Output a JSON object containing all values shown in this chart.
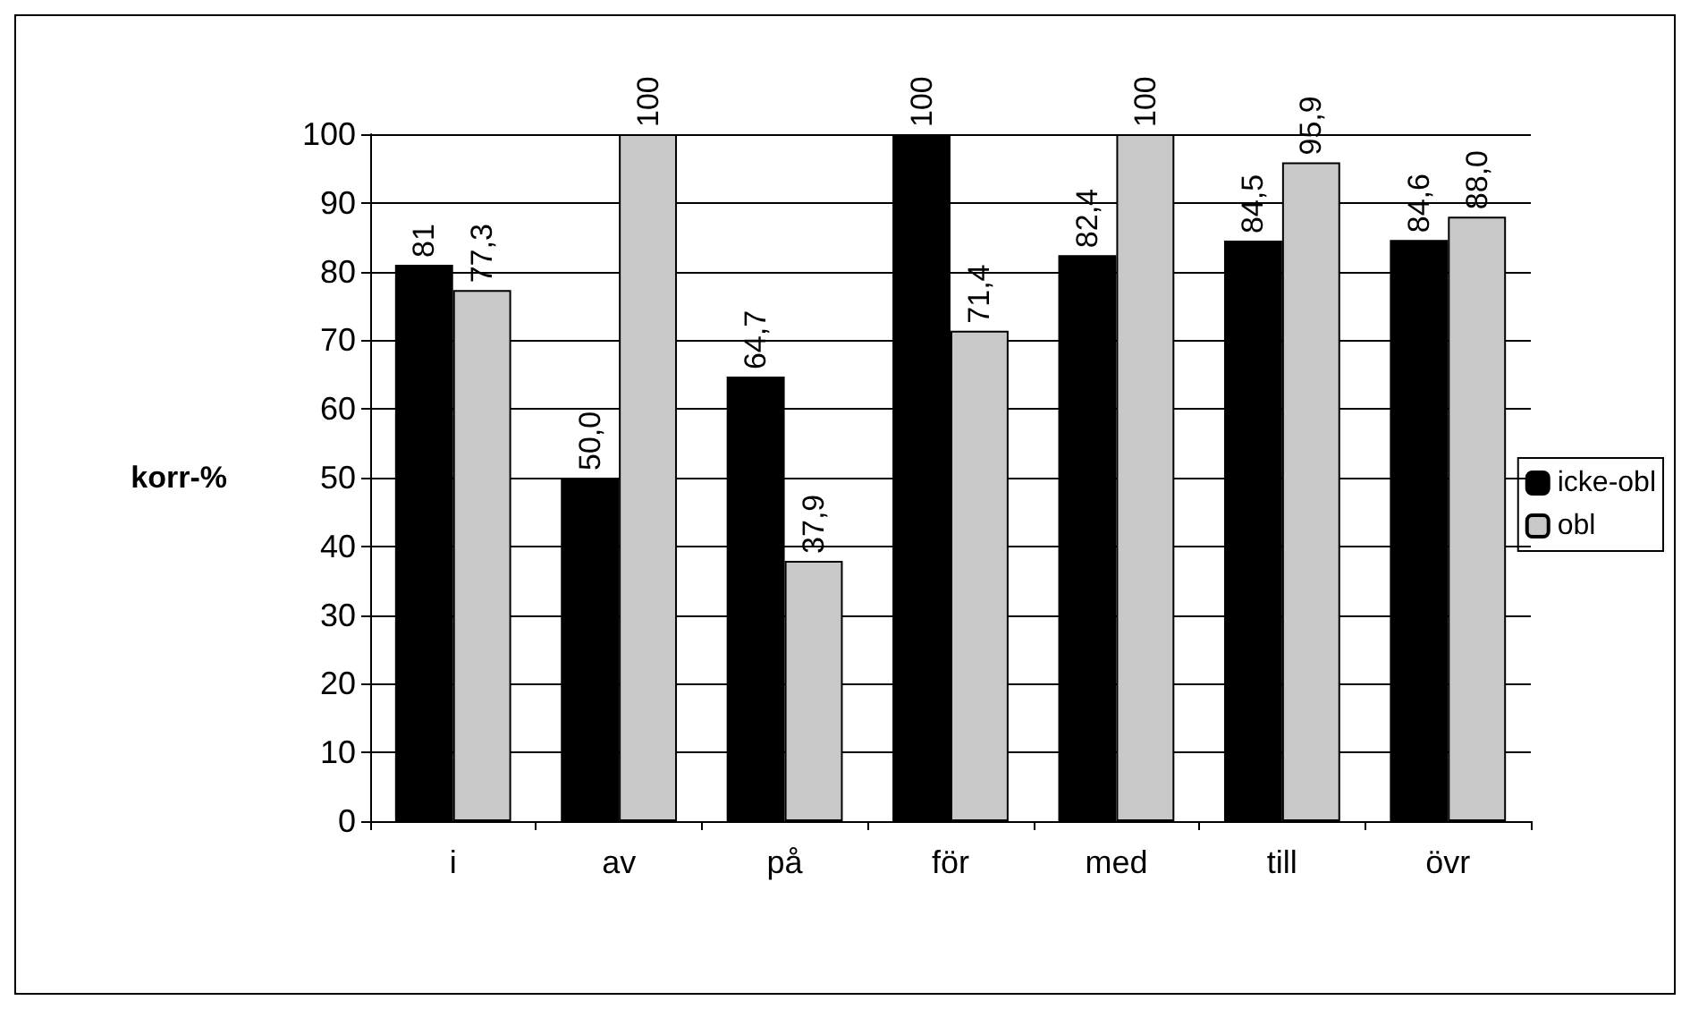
{
  "chart_data": {
    "type": "bar",
    "ylabel": "korr-%",
    "categories": [
      "i",
      "av",
      "på",
      "för",
      "med",
      "till",
      "övr"
    ],
    "series": [
      {
        "name": "icke-obl",
        "color": "#000000",
        "values": [
          81,
          50.0,
          64.7,
          100,
          82.4,
          84.5,
          84.6
        ],
        "value_labels": [
          "81",
          "50,0",
          "64,7",
          "100",
          "82,4",
          "84,5",
          "84,6"
        ]
      },
      {
        "name": "obl",
        "color": "#c8c8c8",
        "values": [
          77.3,
          100,
          37.9,
          71.4,
          100,
          95.9,
          88.0
        ],
        "value_labels": [
          "77,3",
          "100",
          "37,9",
          "71,4",
          "100",
          "95,9",
          "88,0"
        ]
      }
    ],
    "ylim": [
      0,
      100
    ],
    "yticks": [
      0,
      10,
      20,
      30,
      40,
      50,
      60,
      70,
      80,
      90,
      100
    ],
    "grid": "y",
    "legend": "right"
  }
}
